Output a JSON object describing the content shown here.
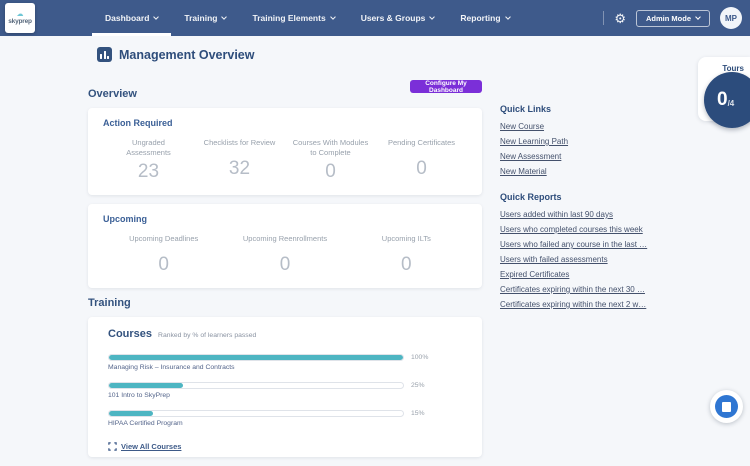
{
  "icons": {
    "gear": "⚙",
    "cloud": "☁"
  },
  "navbar": {
    "logo_text": "skyprep",
    "items": [
      {
        "label": "Dashboard",
        "active": true
      },
      {
        "label": "Training",
        "active": false
      },
      {
        "label": "Training Elements",
        "active": false
      },
      {
        "label": "Users & Groups",
        "active": false
      },
      {
        "label": "Reporting",
        "active": false
      }
    ],
    "admin_mode_label": "Admin Mode",
    "avatar_initials": "MP"
  },
  "page": {
    "title": "Management Overview",
    "configure_button_label": "Configure My Dashboard"
  },
  "tours": {
    "label": "Tours",
    "count": "0",
    "total": "/4"
  },
  "overview": {
    "heading": "Overview",
    "action_required": {
      "title": "Action Required",
      "metrics": [
        {
          "label": "Ungraded Assessments",
          "value": "23"
        },
        {
          "label": "Checklists for Review",
          "value": "32"
        },
        {
          "label": "Courses With Modules to Complete",
          "value": "0"
        },
        {
          "label": "Pending Certificates",
          "value": "0"
        }
      ]
    },
    "upcoming": {
      "title": "Upcoming",
      "metrics": [
        {
          "label": "Upcoming Deadlines",
          "value": "0"
        },
        {
          "label": "Upcoming Reenrollments",
          "value": "0"
        },
        {
          "label": "Upcoming ILTs",
          "value": "0"
        }
      ]
    }
  },
  "training": {
    "heading": "Training",
    "courses_card": {
      "title": "Courses",
      "subtitle": "Ranked by % of learners passed",
      "view_all_label": "View All Courses"
    }
  },
  "chart_data": {
    "type": "bar",
    "orientation": "horizontal",
    "title": "Courses",
    "subtitle": "Ranked by % of learners passed",
    "categories": [
      "Managing Risk – Insurance and Contracts",
      "101 Intro to SkyPrep",
      "HIPAA Certified Program"
    ],
    "values": [
      100,
      25,
      15
    ],
    "value_labels": [
      "100%",
      "25%",
      "15%"
    ],
    "xlim": [
      0,
      100
    ],
    "bar_color": "#4db5c2"
  },
  "sidebar": {
    "quick_links": {
      "title": "Quick Links",
      "items": [
        "New Course",
        "New Learning Path",
        "New Assessment",
        "New Material"
      ]
    },
    "quick_reports": {
      "title": "Quick Reports",
      "items": [
        "Users added within last 90 days",
        "Users who completed courses this week",
        "Users who failed any course in the last …",
        "Users with failed assessments",
        "Expired Certificates",
        "Certificates expiring within the next 30 …",
        "Certificates expiring within the next 2 w…"
      ]
    }
  },
  "colors": {
    "navbar": "#3e5a8b",
    "accent_purple": "#7b2fd8",
    "bar_teal": "#4db5c2",
    "heading_navy": "#33527e",
    "tours_circle": "#2c4c7c"
  }
}
